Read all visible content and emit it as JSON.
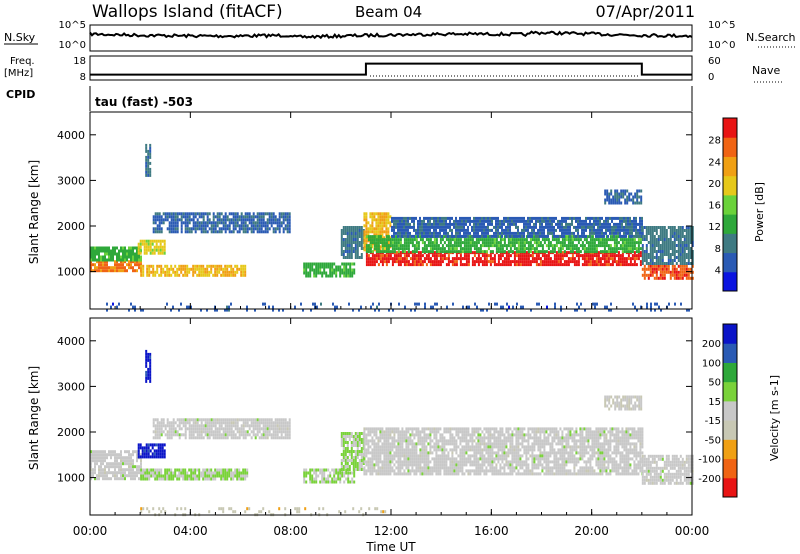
{
  "header": {
    "station": "Wallops Island (fitACF)",
    "beam": "Beam 04",
    "date": "07/Apr/2011"
  },
  "top_panels": {
    "nsky_label": "N.Sky",
    "nsky_ticks": [
      "10^5",
      "10^0"
    ],
    "nsearch_label": "N.Search",
    "nsearch_ticks": [
      "10^5",
      "10^0"
    ],
    "freq_label": "Freq.",
    "freq_unit": "[MHz]",
    "freq_ticks": [
      "18",
      "8"
    ],
    "nave_label": "Nave",
    "nave_ticks": [
      "60",
      "0"
    ],
    "cpid_label": "CPID",
    "cpid_text": "tau (fast) -503",
    "freq_steps": [
      {
        "t0": 0,
        "t1": 11,
        "v": 10
      },
      {
        "t0": 11,
        "t1": 22,
        "v": 15
      },
      {
        "t0": 22,
        "t1": 24,
        "v": 10
      }
    ]
  },
  "chart_data": [
    {
      "type": "heatmap",
      "panel": "power",
      "xlabel": "",
      "ylabel": "Slant Range [km]",
      "x_range_hours": [
        0,
        24
      ],
      "ylim": [
        180,
        4500
      ],
      "y_ticks": [
        "4000",
        "3000",
        "2000",
        "1000"
      ],
      "colorbar_label": "Power [dB]",
      "colorbar_ticks": [
        "28",
        "24",
        "20",
        "16",
        "12",
        "8",
        "4"
      ],
      "colorbar_range": [
        0,
        30
      ],
      "colorscale": [
        "#0a14e0",
        "#2a5ab4",
        "#3e7a82",
        "#2ea83a",
        "#6ad23a",
        "#e6c81a",
        "#f0a014",
        "#f06414",
        "#e81414"
      ],
      "features": [
        {
          "t0": 0.0,
          "t1": 2.0,
          "r0": 1050,
          "r1": 1250,
          "v": 24
        },
        {
          "t0": 0.0,
          "t1": 2.0,
          "r0": 1250,
          "r1": 1550,
          "v": 12
        },
        {
          "t0": 1.9,
          "t1": 3.0,
          "r0": 1400,
          "r1": 1700,
          "v": 18
        },
        {
          "t0": 2.2,
          "t1": 2.4,
          "r0": 3100,
          "r1": 3800,
          "v": 8
        },
        {
          "t0": 2.0,
          "t1": 6.2,
          "r0": 950,
          "r1": 1150,
          "v": 20
        },
        {
          "t0": 2.5,
          "t1": 8.0,
          "r0": 1900,
          "r1": 2300,
          "v": 6
        },
        {
          "t0": 8.5,
          "t1": 10.5,
          "r0": 900,
          "r1": 1200,
          "v": 12
        },
        {
          "t0": 10.0,
          "t1": 10.9,
          "r0": 1300,
          "r1": 2000,
          "v": 8
        },
        {
          "t0": 10.9,
          "t1": 12.0,
          "r0": 1500,
          "r1": 2300,
          "v": 20
        },
        {
          "t0": 11.0,
          "t1": 22.0,
          "r0": 1150,
          "r1": 1450,
          "v": 28
        },
        {
          "t0": 11.0,
          "t1": 22.0,
          "r0": 1450,
          "r1": 1800,
          "v": 12
        },
        {
          "t0": 12.0,
          "t1": 22.0,
          "r0": 1800,
          "r1": 2200,
          "v": 6
        },
        {
          "t0": 20.5,
          "t1": 22.0,
          "r0": 2500,
          "r1": 2800,
          "v": 6
        },
        {
          "t0": 22.0,
          "t1": 24.0,
          "r0": 850,
          "r1": 1150,
          "v": 26
        },
        {
          "t0": 22.0,
          "t1": 24.0,
          "r0": 1150,
          "r1": 2000,
          "v": 8
        },
        {
          "t0": 0.0,
          "t1": 24.0,
          "r0": 180,
          "r1": 320,
          "v": 5
        }
      ]
    },
    {
      "type": "heatmap",
      "panel": "velocity",
      "xlabel": "Time UT",
      "ylabel": "Slant Range [km]",
      "x_range_hours": [
        0,
        24
      ],
      "x_ticks": [
        "00:00",
        "04:00",
        "08:00",
        "12:00",
        "16:00",
        "20:00",
        "00:00"
      ],
      "ylim": [
        180,
        4500
      ],
      "y_ticks": [
        "4000",
        "3000",
        "2000",
        "1000"
      ],
      "colorbar_label": "Velocity [m s-1]",
      "colorbar_ticks": [
        "200",
        "100",
        "50",
        "15",
        "-15",
        "-50",
        "-100",
        "-200"
      ],
      "colorbar_range": [
        -250,
        250
      ],
      "colorscale": [
        "#e81414",
        "#f06414",
        "#f0a014",
        "#c8c8b4",
        "#c8c8c8",
        "#7ad23a",
        "#2ea83a",
        "#2a5ab4",
        "#0a14c8"
      ],
      "features": [
        {
          "t0": 0.0,
          "t1": 2.0,
          "r0": 1000,
          "r1": 1600,
          "v": 0
        },
        {
          "t0": 1.9,
          "t1": 3.0,
          "r0": 1450,
          "r1": 1750,
          "v": 220
        },
        {
          "t0": 2.2,
          "t1": 2.4,
          "r0": 3100,
          "r1": 3800,
          "v": 220
        },
        {
          "t0": 2.0,
          "t1": 6.3,
          "r0": 950,
          "r1": 1200,
          "v": 30
        },
        {
          "t0": 2.5,
          "t1": 8.0,
          "r0": 1900,
          "r1": 2300,
          "v": 0
        },
        {
          "t0": 8.5,
          "t1": 10.5,
          "r0": 900,
          "r1": 1200,
          "v": 30
        },
        {
          "t0": 10.0,
          "t1": 10.9,
          "r0": 1200,
          "r1": 2000,
          "v": 30
        },
        {
          "t0": 10.9,
          "t1": 22.0,
          "r0": 1100,
          "r1": 2100,
          "v": 0
        },
        {
          "t0": 20.5,
          "t1": 22.0,
          "r0": 2500,
          "r1": 2800,
          "v": -20
        },
        {
          "t0": 22.0,
          "t1": 24.0,
          "r0": 850,
          "r1": 1500,
          "v": 0
        },
        {
          "t0": 2.0,
          "t1": 12.0,
          "r0": 180,
          "r1": 350,
          "v": -60
        }
      ]
    }
  ]
}
